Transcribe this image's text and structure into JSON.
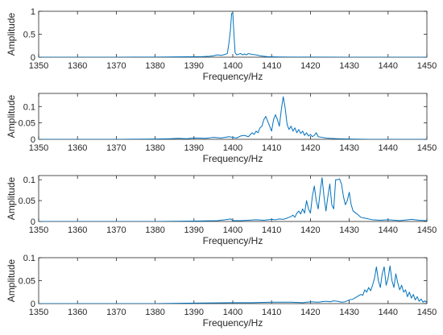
{
  "chart_data": [
    {
      "type": "line",
      "xlabel": "Frequency/Hz",
      "ylabel": "Amplitude",
      "xlim": [
        1350,
        1450
      ],
      "ylim": [
        0,
        1
      ],
      "xticks": [
        1350,
        1360,
        1370,
        1380,
        1390,
        1400,
        1410,
        1420,
        1430,
        1440,
        1450
      ],
      "yticks": [
        0,
        0.5,
        1
      ],
      "ytick_labels": [
        "0",
        "0.5",
        "1"
      ],
      "grid": false,
      "color": "#0072BD",
      "series": [
        {
          "x": [
            1350,
            1360,
            1370,
            1375,
            1380,
            1383,
            1385,
            1388,
            1390,
            1392,
            1394,
            1395,
            1396,
            1397,
            1398,
            1398.6,
            1399,
            1399.4,
            1399.7,
            1400,
            1400.3,
            1400.6,
            1401,
            1401.4,
            1402,
            1402.5,
            1403,
            1403.5,
            1404,
            1405,
            1406,
            1407,
            1408,
            1409,
            1410,
            1412,
            1415,
            1420,
            1430,
            1440,
            1450
          ],
          "y": [
            0,
            0,
            0,
            0.002,
            0.003,
            0.005,
            0.006,
            0.008,
            0.01,
            0.012,
            0.02,
            0.03,
            0.05,
            0.04,
            0.06,
            0.08,
            0.3,
            0.6,
            0.95,
            0.97,
            0.5,
            0.1,
            0.05,
            0.06,
            0.08,
            0.05,
            0.07,
            0.05,
            0.08,
            0.06,
            0.05,
            0.03,
            0.02,
            0.01,
            0.008,
            0.005,
            0.003,
            0.002,
            0,
            0,
            0
          ]
        }
      ]
    },
    {
      "type": "line",
      "xlabel": "Frequency/Hz",
      "ylabel": "Amplitude",
      "xlim": [
        1350,
        1450
      ],
      "ylim": [
        0,
        0.14
      ],
      "xticks": [
        1350,
        1360,
        1370,
        1380,
        1390,
        1400,
        1410,
        1420,
        1430,
        1440,
        1450
      ],
      "yticks": [
        0,
        0.05,
        0.1
      ],
      "ytick_labels": [
        "0",
        "0.05",
        "0.1"
      ],
      "grid": false,
      "color": "#0072BD",
      "series": [
        {
          "x": [
            1350,
            1370,
            1380,
            1384,
            1386,
            1388,
            1390,
            1393,
            1395,
            1397,
            1399,
            1400,
            1401,
            1402,
            1403,
            1404,
            1405,
            1405.5,
            1406,
            1406.5,
            1407,
            1407.5,
            1408,
            1408.5,
            1409,
            1409.5,
            1410,
            1410.5,
            1411,
            1411.5,
            1412,
            1412.5,
            1413,
            1413.5,
            1414,
            1414.5,
            1415,
            1415.5,
            1416,
            1416.5,
            1417,
            1417.5,
            1418,
            1418.5,
            1419,
            1419.5,
            1420,
            1420.5,
            1421,
            1421.5,
            1422,
            1423,
            1424,
            1425,
            1427,
            1430,
            1435,
            1440,
            1450
          ],
          "y": [
            0,
            0,
            0.001,
            0.002,
            0.003,
            0.002,
            0.004,
            0.003,
            0.006,
            0.004,
            0.008,
            0.006,
            0.004,
            0.01,
            0.012,
            0.008,
            0.02,
            0.015,
            0.025,
            0.02,
            0.035,
            0.04,
            0.06,
            0.07,
            0.055,
            0.04,
            0.025,
            0.06,
            0.075,
            0.06,
            0.04,
            0.09,
            0.13,
            0.095,
            0.045,
            0.03,
            0.04,
            0.025,
            0.035,
            0.02,
            0.03,
            0.018,
            0.025,
            0.012,
            0.02,
            0.01,
            0.015,
            0.008,
            0.012,
            0.02,
            0.008,
            0.006,
            0.004,
            0.003,
            0.002,
            0.001,
            0,
            0,
            0
          ]
        }
      ]
    },
    {
      "type": "line",
      "xlabel": "Frequency/Hz",
      "ylabel": "Amplitude",
      "xlim": [
        1350,
        1450
      ],
      "ylim": [
        0,
        0.11
      ],
      "xticks": [
        1350,
        1360,
        1370,
        1380,
        1390,
        1400,
        1410,
        1420,
        1430,
        1440,
        1450
      ],
      "yticks": [
        0,
        0.05,
        0.1
      ],
      "ytick_labels": [
        "0",
        "0.05",
        "0.1"
      ],
      "grid": false,
      "color": "#0072BD",
      "series": [
        {
          "x": [
            1350,
            1380,
            1390,
            1396,
            1398,
            1399.5,
            1400,
            1402,
            1404,
            1406,
            1408,
            1410,
            1411,
            1412,
            1413,
            1414,
            1415,
            1415.5,
            1416,
            1416.5,
            1417,
            1417.5,
            1418,
            1418.5,
            1419,
            1419.5,
            1420,
            1420.5,
            1421,
            1421.5,
            1422,
            1422.5,
            1423,
            1423.5,
            1424,
            1424.5,
            1425,
            1425.5,
            1426,
            1426.5,
            1427,
            1427.5,
            1428,
            1428.5,
            1429,
            1429.5,
            1430,
            1430.5,
            1431,
            1432,
            1433,
            1434,
            1436,
            1438,
            1440,
            1443,
            1446,
            1448,
            1450
          ],
          "y": [
            0,
            0,
            0.001,
            0.002,
            0.004,
            0.006,
            0.002,
            0.002,
            0.003,
            0.004,
            0.003,
            0.005,
            0.004,
            0.006,
            0.005,
            0.008,
            0.012,
            0.015,
            0.01,
            0.02,
            0.025,
            0.018,
            0.03,
            0.02,
            0.05,
            0.03,
            0.02,
            0.06,
            0.085,
            0.05,
            0.03,
            0.07,
            0.105,
            0.06,
            0.025,
            0.06,
            0.09,
            0.04,
            0.03,
            0.1,
            0.1,
            0.102,
            0.09,
            0.06,
            0.04,
            0.05,
            0.07,
            0.04,
            0.025,
            0.018,
            0.01,
            0.008,
            0.004,
            0.003,
            0.004,
            0.002,
            0.005,
            0.003,
            0.002
          ]
        }
      ]
    },
    {
      "type": "line",
      "xlabel": "Frequency/Hz",
      "ylabel": "Amplitude",
      "xlim": [
        1350,
        1450
      ],
      "ylim": [
        0,
        0.1
      ],
      "xticks": [
        1350,
        1360,
        1370,
        1380,
        1390,
        1400,
        1410,
        1420,
        1430,
        1440,
        1450
      ],
      "yticks": [
        0,
        0.05,
        0.1
      ],
      "ytick_labels": [
        "0",
        "0.05",
        "0.1"
      ],
      "grid": false,
      "color": "#0072BD",
      "series": [
        {
          "x": [
            1350,
            1380,
            1390,
            1400,
            1405,
            1410,
            1415,
            1418,
            1420,
            1422,
            1424,
            1425,
            1426,
            1427,
            1428,
            1429,
            1430,
            1431,
            1432,
            1433,
            1433.5,
            1434,
            1434.5,
            1435,
            1435.5,
            1436,
            1436.5,
            1437,
            1437.5,
            1438,
            1438.5,
            1439,
            1439.5,
            1440,
            1440.5,
            1441,
            1441.5,
            1442,
            1442.5,
            1443,
            1443.5,
            1444,
            1444.5,
            1445,
            1445.5,
            1446,
            1446.5,
            1447,
            1447.5,
            1448,
            1448.5,
            1449,
            1449.5,
            1450
          ],
          "y": [
            0,
            0,
            0.001,
            0.002,
            0.002,
            0.003,
            0.003,
            0.002,
            0.004,
            0.003,
            0.005,
            0.004,
            0.006,
            0.005,
            0.003,
            0.004,
            0.008,
            0.01,
            0.015,
            0.02,
            0.018,
            0.03,
            0.025,
            0.035,
            0.028,
            0.04,
            0.055,
            0.08,
            0.05,
            0.035,
            0.065,
            0.08,
            0.04,
            0.055,
            0.082,
            0.05,
            0.035,
            0.065,
            0.045,
            0.03,
            0.04,
            0.025,
            0.03,
            0.015,
            0.025,
            0.012,
            0.02,
            0.008,
            0.015,
            0.005,
            0.01,
            0.003,
            0.006,
            0.002
          ]
        }
      ]
    }
  ]
}
